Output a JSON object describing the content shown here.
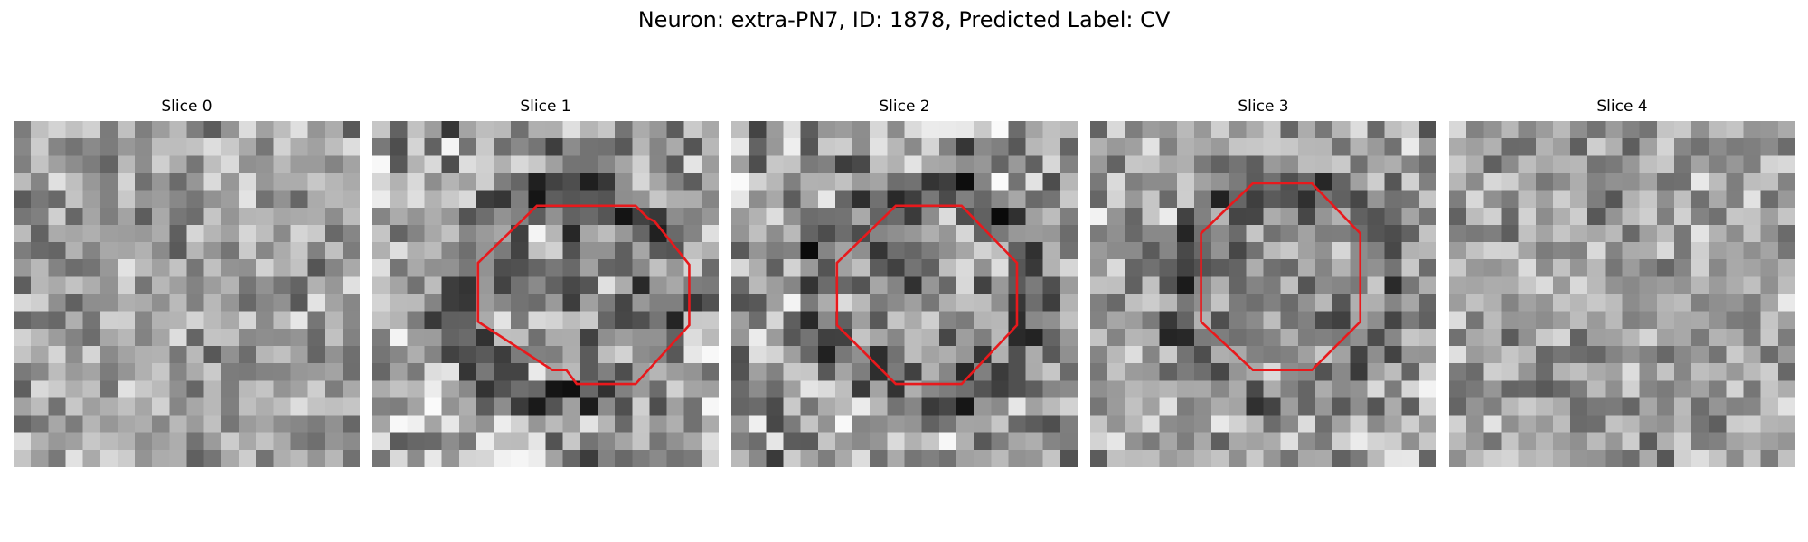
{
  "figure": {
    "title": "Neuron: extra-PN7, ID: 1878, Predicted Label: CV"
  },
  "colors": {
    "contour": "#e8191c",
    "colormap": "gray"
  },
  "panels": [
    {
      "title": "Slice 0",
      "seed": 11,
      "contrast": "low",
      "contour": null
    },
    {
      "title": "Slice 1",
      "seed": 23,
      "contrast": "high",
      "contour": [
        [
          11.8,
          4.9
        ],
        [
          15.2,
          4.9
        ],
        [
          15.9,
          5.6
        ],
        [
          16.3,
          5.8
        ],
        [
          18.3,
          8.3
        ],
        [
          18.3,
          11.8
        ],
        [
          15.2,
          15.2
        ],
        [
          11.8,
          15.2
        ],
        [
          11.2,
          14.4
        ],
        [
          10.4,
          14.4
        ],
        [
          6.1,
          11.6
        ],
        [
          6.1,
          8.2
        ],
        [
          9.5,
          4.9
        ]
      ]
    },
    {
      "title": "Slice 2",
      "seed": 37,
      "contrast": "high",
      "contour": [
        [
          9.5,
          4.9
        ],
        [
          13.3,
          4.9
        ],
        [
          16.5,
          8.2
        ],
        [
          16.5,
          11.8
        ],
        [
          13.3,
          15.2
        ],
        [
          9.5,
          15.2
        ],
        [
          6.1,
          11.8
        ],
        [
          6.1,
          8.2
        ]
      ]
    },
    {
      "title": "Slice 3",
      "seed": 41,
      "contrast": "medium",
      "contour": [
        [
          9.4,
          3.6
        ],
        [
          12.8,
          3.6
        ],
        [
          15.6,
          6.5
        ],
        [
          15.6,
          11.6
        ],
        [
          12.8,
          14.4
        ],
        [
          9.4,
          14.4
        ],
        [
          6.4,
          11.6
        ],
        [
          6.4,
          6.5
        ]
      ]
    },
    {
      "title": "Slice 4",
      "seed": 53,
      "contrast": "low",
      "contour": null
    }
  ]
}
